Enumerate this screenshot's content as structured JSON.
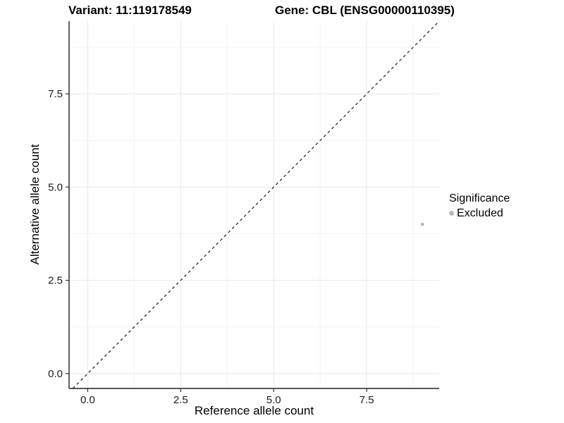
{
  "titles": {
    "variant": "Variant: 11:119178549",
    "gene": "Gene: CBL (ENSG00000110395)"
  },
  "legend": {
    "title": "Significance",
    "position": "right",
    "items": [
      {
        "label": "Excluded",
        "color": "#b9b9b9"
      }
    ]
  },
  "chart_data": {
    "type": "scatter",
    "title": "",
    "xlabel": "Reference allele count",
    "ylabel": "Alternative allele count",
    "xlim": [
      -0.5,
      9.45
    ],
    "ylim": [
      -0.4,
      9.45
    ],
    "x_ticks": {
      "values": [
        0,
        2.5,
        5,
        7.5
      ],
      "labels": [
        "0.0",
        "2.5",
        "5.0",
        "7.5"
      ]
    },
    "y_ticks": {
      "values": [
        0,
        2.5,
        5,
        7.5
      ],
      "labels": [
        "0.0",
        "2.5",
        "5.0",
        "7.5"
      ]
    },
    "x_minor_ticks": [
      1.25,
      3.75,
      6.25,
      8.75
    ],
    "y_minor_ticks": [
      1.25,
      3.75,
      6.25,
      8.75
    ],
    "grid": true,
    "series": [
      {
        "name": "Excluded",
        "color": "#b9b9b9",
        "points": [
          {
            "x": 9,
            "y": 4
          }
        ]
      }
    ],
    "reference_line": {
      "type": "identity",
      "style": "dashed",
      "color": "#1a1a1a"
    },
    "legend_position": "right",
    "colors": {
      "grid_major": "#e8e8e8",
      "grid_minor": "#f4f4f4",
      "axis_line": "#222222",
      "tick_mark": "#333333",
      "tick_label": "#1a1a1a"
    }
  }
}
